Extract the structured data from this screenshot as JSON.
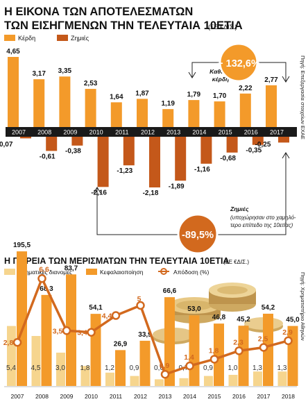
{
  "chart_data": [
    {
      "type": "bar",
      "title": "Η ΕΙΚΟΝΑ ΤΩΝ ΑΠΟΤΕΛΕΣΜΑΤΩΝ",
      "title2": "ΤΩΝ ΕΙΣΗΓΜΕΝΩΝ ΤΗΝ ΤΕΛΕΥΤΑΙΑ 10ΕΤΙΑ",
      "subtitle": "(ΣΕ €ΔΙΣ.)",
      "source": "Πηγή: Επεξεργασία στοιχείων ΕΧΑΕ",
      "categories": [
        "2007",
        "2008",
        "2009",
        "2010",
        "2011",
        "2012",
        "2013",
        "2014",
        "2015",
        "2016",
        "2017"
      ],
      "series": [
        {
          "name": "Κέρδη",
          "color": "#f39a2a",
          "values": [
            4.65,
            3.17,
            3.35,
            2.53,
            1.64,
            1.87,
            1.19,
            1.79,
            1.7,
            2.22,
            2.77
          ]
        },
        {
          "name": "Ζημιές",
          "color": "#c4581a",
          "values": [
            -0.07,
            -0.61,
            -0.38,
            -2.16,
            -1.23,
            -2.18,
            -1.89,
            -1.16,
            -0.68,
            -0.35,
            -0.25
          ]
        }
      ],
      "value_labels": {
        "profits": [
          "4,65",
          "3,17",
          "3,35",
          "2,53",
          "1,64",
          "1,87",
          "1,19",
          "1,79",
          "1,70",
          "2,22",
          "2,77"
        ],
        "losses": [
          "-0,07",
          "-0,61",
          "-0,38",
          "-2,16",
          "-1,23",
          "-2,18",
          "-1,89",
          "-1,16",
          "-0,68",
          "-0,35",
          "-0,25"
        ]
      },
      "annotations": {
        "profit_label": "Καθαρά\nκέρδη",
        "profit_change": "+ 132,6%",
        "loss_label": "Ζημιές",
        "loss_note": "(υποχώρησαν στο χαμηλό-\nτερο επίπεδο της 10ετίας)",
        "loss_change": "-89,5%"
      },
      "legend_position": "top-left",
      "ylim": [
        -2.5,
        5
      ]
    },
    {
      "type": "bar",
      "title": "Η ΠΟΡΕΙΑ ΤΩΝ ΜΕΡΙΣΜΑΤΩΝ ΤΗΝ ΤΕΛΕΥΤΑΙΑ 10ΕΤΙΑ",
      "subtitle": "(ΣΕ €ΔΙΣ.)",
      "source": "Πηγή: Χρηματιστήριο Αθηνών",
      "categories": [
        "2007",
        "2008",
        "2009",
        "2010",
        "2011",
        "2012",
        "2013",
        "2014",
        "2015",
        "2016",
        "2017",
        "2018"
      ],
      "series": [
        {
          "name": "Χρηματικές διανομές",
          "color": "#f6d58e",
          "values": [
            5.4,
            4.5,
            3.0,
            1.8,
            1.2,
            0.9,
            0.6,
            0.7,
            0.9,
            1.0,
            1.3,
            1.3
          ]
        },
        {
          "name": "Κεφαλαιοποίηση",
          "color": "#f39a2a",
          "values": [
            195.5,
            68.3,
            83.7,
            54.1,
            26.9,
            33.9,
            66.6,
            53.0,
            46.8,
            45.2,
            54.2,
            45.0
          ]
        },
        {
          "name": "Απόδοση (%)",
          "color": "#d2691e",
          "type": "line",
          "values": [
            2.8,
            6.6,
            3.5,
            3.4,
            4.4,
            5.0,
            0.9,
            1.4,
            1.8,
            2.3,
            2.5,
            2.9
          ]
        }
      ],
      "value_labels": {
        "distributions": [
          "5,4",
          "4,5",
          "3,0",
          "1,8",
          "1,2",
          "0,9",
          "0,6",
          "0,7",
          "0,9",
          "1,0",
          "1,3",
          "1,3"
        ],
        "capitalization": [
          "195,5",
          "68,3",
          "83,7",
          "54,1",
          "26,9",
          "33,9",
          "66,6",
          "53,0",
          "46,8",
          "45,2",
          "54,2",
          "45,0"
        ],
        "yield": [
          "2,8",
          "6,6",
          "3,5",
          "3,4",
          "4,4",
          "5",
          "0,9",
          "1,4",
          "1,8",
          "2,3",
          "2,5",
          "2,9"
        ]
      },
      "legend_position": "top-left"
    }
  ]
}
